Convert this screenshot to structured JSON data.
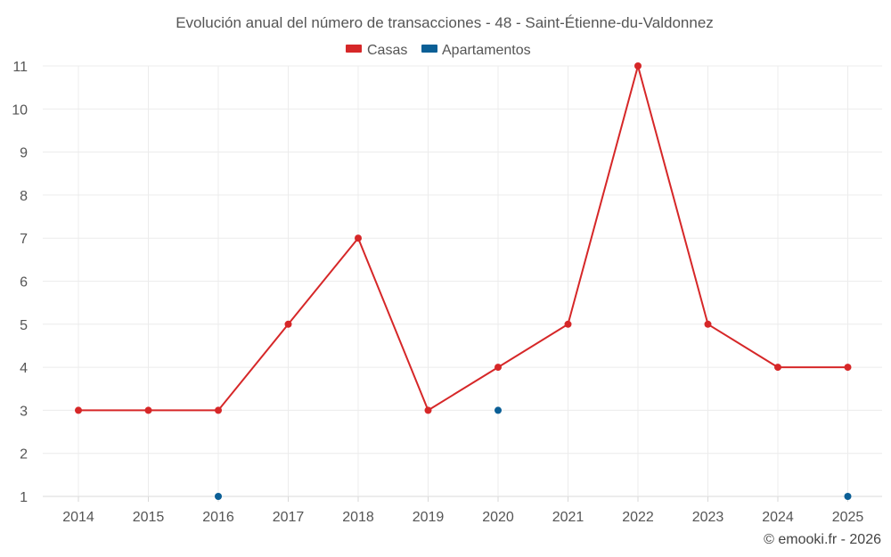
{
  "chart_data": {
    "type": "line",
    "title": "Evolución anual del número de transacciones - 48 - Saint-Étienne-du-Valdonnez",
    "categories": [
      "2014",
      "2015",
      "2016",
      "2017",
      "2018",
      "2019",
      "2020",
      "2021",
      "2022",
      "2023",
      "2024",
      "2025"
    ],
    "series": [
      {
        "name": "Casas",
        "color": "#d62728",
        "values": [
          3,
          3,
          3,
          5,
          7,
          3,
          4,
          5,
          11,
          5,
          4,
          4
        ]
      },
      {
        "name": "Apartamentos",
        "color": "#0b5f96",
        "values": [
          null,
          null,
          1,
          null,
          null,
          null,
          3,
          null,
          null,
          null,
          null,
          1
        ]
      }
    ],
    "ylim": [
      1,
      11
    ],
    "yticks": [
      1,
      2,
      3,
      4,
      5,
      6,
      7,
      8,
      9,
      10,
      11
    ],
    "grid": true,
    "legend_position": "top-center",
    "xlabel": "",
    "ylabel": ""
  },
  "credit": "© emooki.fr - 2026"
}
